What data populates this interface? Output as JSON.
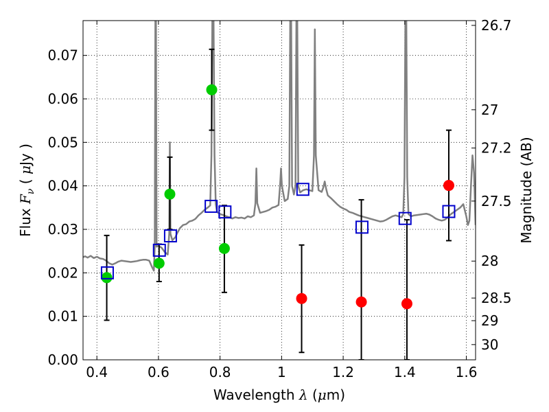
{
  "chart_data": {
    "type": "scatter",
    "xlabel": {
      "text": "Wavelength",
      "symbol": "λ",
      "unit_prefix": "(",
      "mu": "μ",
      "unit": "m)"
    },
    "ylabel": {
      "text": "Flux",
      "symbol": "F",
      "subscript": "ν",
      "unit_open": "(",
      "mu": "μ",
      "unit": "Jy",
      "unit_close": ")"
    },
    "y2label": "Magnitude (AB)",
    "xlim": [
      0.355,
      1.63
    ],
    "ylim": [
      0.0,
      0.078
    ],
    "grid": true,
    "x_ticks": [
      0.4,
      0.6,
      0.8,
      1.0,
      1.2,
      1.4,
      1.6
    ],
    "x_tick_labels": [
      "0.4",
      "0.6",
      "0.8",
      "1",
      "1.2",
      "1.4",
      "1.6"
    ],
    "y_ticks": [
      0.0,
      0.01,
      0.02,
      0.03,
      0.04,
      0.05,
      0.06,
      0.07
    ],
    "y_tick_labels": [
      "0.00",
      "0.01",
      "0.02",
      "0.03",
      "0.04",
      "0.05",
      "0.06",
      "0.07"
    ],
    "y2_ticks": [
      {
        "label": "26.7",
        "flux": 0.0769
      },
      {
        "label": "27",
        "flux": 0.0575
      },
      {
        "label": "27.2",
        "flux": 0.0487
      },
      {
        "label": "27.5",
        "flux": 0.0365
      },
      {
        "label": "28",
        "flux": 0.0227
      },
      {
        "label": "28.5",
        "flux": 0.0142
      },
      {
        "label": "29",
        "flux": 0.009
      },
      {
        "label": "30",
        "flux": 0.0035
      }
    ],
    "series": [
      {
        "style": "line",
        "color": "#808080",
        "points": [
          [
            0.355,
            0.0236
          ],
          [
            0.362,
            0.0238
          ],
          [
            0.37,
            0.0235
          ],
          [
            0.38,
            0.0239
          ],
          [
            0.39,
            0.0234
          ],
          [
            0.4,
            0.0237
          ],
          [
            0.41,
            0.0233
          ],
          [
            0.42,
            0.0232
          ],
          [
            0.43,
            0.0228
          ],
          [
            0.44,
            0.0222
          ],
          [
            0.45,
            0.0219
          ],
          [
            0.46,
            0.0222
          ],
          [
            0.47,
            0.0226
          ],
          [
            0.48,
            0.0228
          ],
          [
            0.49,
            0.0227
          ],
          [
            0.5,
            0.0226
          ],
          [
            0.51,
            0.0225
          ],
          [
            0.52,
            0.0226
          ],
          [
            0.53,
            0.0227
          ],
          [
            0.54,
            0.0229
          ],
          [
            0.55,
            0.023
          ],
          [
            0.56,
            0.023
          ],
          [
            0.57,
            0.0228
          ],
          [
            0.58,
            0.0212
          ],
          [
            0.585,
            0.0205
          ],
          [
            0.588,
            0.026
          ],
          [
            0.59,
            0.078
          ],
          [
            0.592,
            0.078
          ],
          [
            0.594,
            0.026
          ],
          [
            0.6,
            0.0262
          ],
          [
            0.61,
            0.0258
          ],
          [
            0.62,
            0.0248
          ],
          [
            0.63,
            0.0242
          ],
          [
            0.635,
            0.029
          ],
          [
            0.637,
            0.05
          ],
          [
            0.639,
            0.029
          ],
          [
            0.645,
            0.0275
          ],
          [
            0.655,
            0.0282
          ],
          [
            0.66,
            0.029
          ],
          [
            0.67,
            0.0303
          ],
          [
            0.68,
            0.031
          ],
          [
            0.69,
            0.0312
          ],
          [
            0.7,
            0.0318
          ],
          [
            0.71,
            0.032
          ],
          [
            0.72,
            0.0324
          ],
          [
            0.73,
            0.0332
          ],
          [
            0.74,
            0.0338
          ],
          [
            0.75,
            0.0345
          ],
          [
            0.76,
            0.035
          ],
          [
            0.768,
            0.0355
          ],
          [
            0.772,
            0.047
          ],
          [
            0.775,
            0.078
          ],
          [
            0.779,
            0.078
          ],
          [
            0.782,
            0.047
          ],
          [
            0.786,
            0.0358
          ],
          [
            0.79,
            0.034
          ],
          [
            0.8,
            0.0335
          ],
          [
            0.81,
            0.0333
          ],
          [
            0.82,
            0.033
          ],
          [
            0.83,
            0.0328
          ],
          [
            0.84,
            0.0325
          ],
          [
            0.85,
            0.0328
          ],
          [
            0.86,
            0.0326
          ],
          [
            0.87,
            0.0327
          ],
          [
            0.88,
            0.0325
          ],
          [
            0.89,
            0.033
          ],
          [
            0.9,
            0.0328
          ],
          [
            0.91,
            0.0332
          ],
          [
            0.915,
            0.036
          ],
          [
            0.918,
            0.044
          ],
          [
            0.921,
            0.036
          ],
          [
            0.93,
            0.0338
          ],
          [
            0.94,
            0.034
          ],
          [
            0.95,
            0.0342
          ],
          [
            0.96,
            0.0345
          ],
          [
            0.97,
            0.035
          ],
          [
            0.98,
            0.0352
          ],
          [
            0.99,
            0.0356
          ],
          [
            0.995,
            0.04
          ],
          [
            0.998,
            0.044
          ],
          [
            1.001,
            0.04
          ],
          [
            1.01,
            0.0365
          ],
          [
            1.02,
            0.037
          ],
          [
            1.025,
            0.04
          ],
          [
            1.028,
            0.078
          ],
          [
            1.031,
            0.078
          ],
          [
            1.034,
            0.04
          ],
          [
            1.04,
            0.038
          ],
          [
            1.045,
            0.04
          ],
          [
            1.048,
            0.078
          ],
          [
            1.051,
            0.078
          ],
          [
            1.054,
            0.04
          ],
          [
            1.06,
            0.0385
          ],
          [
            1.07,
            0.039
          ],
          [
            1.08,
            0.0392
          ],
          [
            1.09,
            0.039
          ],
          [
            1.1,
            0.0388
          ],
          [
            1.105,
            0.047
          ],
          [
            1.108,
            0.076
          ],
          [
            1.111,
            0.047
          ],
          [
            1.12,
            0.039
          ],
          [
            1.13,
            0.0386
          ],
          [
            1.135,
            0.0395
          ],
          [
            1.14,
            0.041
          ],
          [
            1.145,
            0.0392
          ],
          [
            1.15,
            0.0378
          ],
          [
            1.16,
            0.0372
          ],
          [
            1.17,
            0.0365
          ],
          [
            1.18,
            0.0358
          ],
          [
            1.19,
            0.0352
          ],
          [
            1.2,
            0.0348
          ],
          [
            1.21,
            0.0345
          ],
          [
            1.22,
            0.034
          ],
          [
            1.23,
            0.0338
          ],
          [
            1.24,
            0.0335
          ],
          [
            1.25,
            0.0332
          ],
          [
            1.26,
            0.033
          ],
          [
            1.27,
            0.0328
          ],
          [
            1.28,
            0.0326
          ],
          [
            1.29,
            0.0324
          ],
          [
            1.3,
            0.0322
          ],
          [
            1.31,
            0.032
          ],
          [
            1.32,
            0.0318
          ],
          [
            1.33,
            0.0319
          ],
          [
            1.34,
            0.0322
          ],
          [
            1.35,
            0.0326
          ],
          [
            1.36,
            0.033
          ],
          [
            1.37,
            0.0332
          ],
          [
            1.38,
            0.033
          ],
          [
            1.39,
            0.0328
          ],
          [
            1.395,
            0.0335
          ],
          [
            1.399,
            0.042
          ],
          [
            1.402,
            0.078
          ],
          [
            1.405,
            0.078
          ],
          [
            1.408,
            0.042
          ],
          [
            1.412,
            0.0335
          ],
          [
            1.42,
            0.033
          ],
          [
            1.43,
            0.0332
          ],
          [
            1.44,
            0.0333
          ],
          [
            1.45,
            0.0334
          ],
          [
            1.46,
            0.0335
          ],
          [
            1.47,
            0.0336
          ],
          [
            1.48,
            0.0334
          ],
          [
            1.49,
            0.033
          ],
          [
            1.5,
            0.0325
          ],
          [
            1.51,
            0.0322
          ],
          [
            1.52,
            0.032
          ],
          [
            1.53,
            0.0322
          ],
          [
            1.54,
            0.0328
          ],
          [
            1.55,
            0.0335
          ],
          [
            1.56,
            0.034
          ],
          [
            1.57,
            0.0345
          ],
          [
            1.58,
            0.035
          ],
          [
            1.59,
            0.0358
          ],
          [
            1.6,
            0.033
          ],
          [
            1.605,
            0.031
          ],
          [
            1.61,
            0.032
          ],
          [
            1.615,
            0.04
          ],
          [
            1.62,
            0.047
          ],
          [
            1.625,
            0.043
          ],
          [
            1.63,
            0.031
          ]
        ]
      },
      {
        "style": "circles",
        "color": "#00cc00",
        "points": [
          {
            "x": 0.432,
            "y": 0.0189,
            "err": [
              0.0091,
              0.0286
            ]
          },
          {
            "x": 0.602,
            "y": 0.0222,
            "err": [
              0.018,
              0.0266
            ]
          },
          {
            "x": 0.637,
            "y": 0.0381,
            "err": [
              0.03,
              0.0466
            ]
          },
          {
            "x": 0.773,
            "y": 0.0621,
            "err": [
              0.0528,
              0.0714
            ]
          },
          {
            "x": 0.814,
            "y": 0.0256,
            "err": [
              0.0155,
              0.0355
            ]
          }
        ]
      },
      {
        "style": "circles",
        "color": "#ff0000",
        "points": [
          {
            "x": 1.065,
            "y": 0.0141,
            "err": [
              0.0017,
              0.0264
            ]
          },
          {
            "x": 1.259,
            "y": 0.0133,
            "err": [
              0.0,
              0.0368
            ]
          },
          {
            "x": 1.407,
            "y": 0.0129,
            "err": [
              0.0,
              0.0322
            ]
          },
          {
            "x": 1.543,
            "y": 0.0401,
            "err": [
              0.0274,
              0.0528
            ]
          }
        ]
      },
      {
        "style": "squares",
        "color": "#0000cc",
        "points": [
          {
            "x": 0.434,
            "y": 0.02
          },
          {
            "x": 0.603,
            "y": 0.0252
          },
          {
            "x": 0.639,
            "y": 0.0285
          },
          {
            "x": 0.771,
            "y": 0.0353
          },
          {
            "x": 0.816,
            "y": 0.034
          },
          {
            "x": 1.069,
            "y": 0.0392
          },
          {
            "x": 1.261,
            "y": 0.0305
          },
          {
            "x": 1.401,
            "y": 0.0325
          },
          {
            "x": 1.543,
            "y": 0.0341
          }
        ]
      }
    ]
  }
}
